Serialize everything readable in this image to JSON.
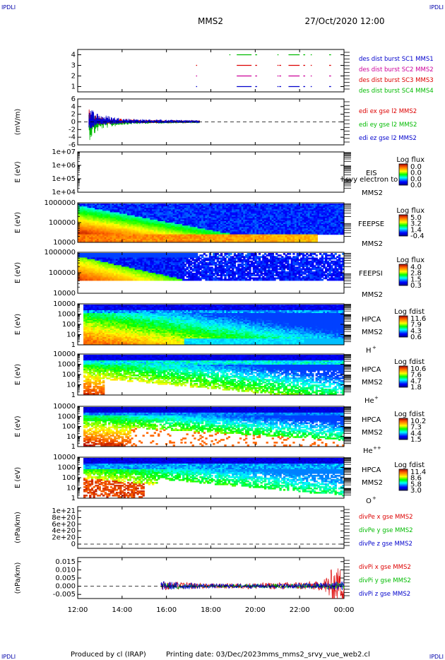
{
  "header": {
    "corner_left_top": "IPDLI",
    "corner_right_top": "IPDLI",
    "title": "MMS2",
    "datetime": "27/Oct/2020 12:00",
    "corner_left_bottom": "IPDLI",
    "corner_right_bottom": "IPDLI"
  },
  "footer": {
    "produced_by": "Produced by cl (IRAP)",
    "printing_date": "Printing date: 03/Dec/2023",
    "script": "mms_mms2_srvy_vue_web2.cl"
  },
  "colors": {
    "mms1": "#0000cc",
    "mms2": "#cc0099",
    "mms3": "#dd0000",
    "mms4": "#00bb00",
    "x": "#dd0000",
    "y": "#00bb00",
    "z": "#0000cc"
  },
  "chart_data": [
    {
      "type": "line",
      "panel": "burst-availability",
      "ylim": [
        0.5,
        4.5
      ],
      "yticks": [
        "1",
        "2",
        "3",
        "4"
      ],
      "series": [
        {
          "name": "des dist burst SC1 MMS1",
          "level": 1,
          "intervals": [
            [
              "17:20",
              "17:22"
            ],
            [
              "19:10",
              "19:50"
            ],
            [
              "20:00",
              "20:05"
            ],
            [
              "21:00",
              "21:03"
            ],
            [
              "21:05",
              "21:10"
            ],
            [
              "21:30",
              "22:00"
            ],
            [
              "22:10",
              "22:15"
            ],
            [
              "22:30",
              "22:33"
            ],
            [
              "23:20",
              "23:25"
            ]
          ]
        },
        {
          "name": "des dist burst SC2 MMS2",
          "level": 2,
          "intervals": [
            [
              "17:20",
              "17:22"
            ],
            [
              "19:10",
              "19:50"
            ],
            [
              "20:00",
              "20:05"
            ],
            [
              "21:00",
              "21:03"
            ],
            [
              "21:05",
              "21:10"
            ],
            [
              "21:30",
              "22:00"
            ],
            [
              "22:10",
              "22:15"
            ],
            [
              "22:30",
              "22:33"
            ],
            [
              "23:20",
              "23:25"
            ]
          ]
        },
        {
          "name": "des dist burst SC3 MMS3",
          "level": 3,
          "intervals": [
            [
              "17:20",
              "17:22"
            ],
            [
              "19:10",
              "19:50"
            ],
            [
              "20:00",
              "20:05"
            ],
            [
              "21:00",
              "21:03"
            ],
            [
              "21:05",
              "21:10"
            ],
            [
              "21:30",
              "22:00"
            ],
            [
              "22:10",
              "22:15"
            ],
            [
              "22:30",
              "22:33"
            ],
            [
              "23:20",
              "23:25"
            ]
          ]
        },
        {
          "name": "des dist burst SC4 MMS4",
          "level": 4,
          "intervals": [
            [
              "18:50",
              "18:52"
            ],
            [
              "19:10",
              "19:50"
            ],
            [
              "20:00",
              "20:05"
            ],
            [
              "21:00",
              "21:03"
            ],
            [
              "21:30",
              "22:00"
            ],
            [
              "22:10",
              "22:15"
            ],
            [
              "22:30",
              "22:33"
            ],
            [
              "23:20",
              "23:25"
            ]
          ]
        }
      ]
    },
    {
      "type": "line",
      "panel": "electric-field",
      "ylabel": "(mV/m)",
      "ylim": [
        -6,
        6
      ],
      "yticks": [
        "6",
        "4",
        "2",
        "0",
        "-2",
        "-4",
        "-6"
      ],
      "series": [
        {
          "name": "edi ex gse l2 MMS2",
          "envelope": [
            [
              "12:30",
              3.5
            ],
            [
              "13:00",
              1.5
            ],
            [
              "14:00",
              0.8
            ],
            [
              "15:00",
              0.6
            ],
            [
              "16:00",
              0.5
            ],
            [
              "17:30",
              0.4
            ]
          ]
        },
        {
          "name": "edi ey gse l2 MMS2",
          "envelope": [
            [
              "12:30",
              -5.0
            ],
            [
              "13:00",
              -2.0
            ],
            [
              "14:00",
              -0.8
            ],
            [
              "15:00",
              -0.5
            ],
            [
              "16:00",
              -0.4
            ],
            [
              "17:30",
              -0.3
            ]
          ]
        },
        {
          "name": "edi ez gse l2 MMS2",
          "envelope": [
            [
              "12:30",
              4.0
            ],
            [
              "13:00",
              2.0
            ],
            [
              "14:00",
              1.0
            ],
            [
              "15:00",
              0.7
            ],
            [
              "16:00",
              0.6
            ],
            [
              "17:30",
              0.5
            ]
          ]
        }
      ]
    },
    {
      "type": "heatmap",
      "panel": "eis",
      "ylabel": "E (eV)",
      "yticks": [
        "1e+07",
        "1e+06",
        "1e+05",
        "1e+04"
      ],
      "instrument": "EIS",
      "spacecraft": "MMS2",
      "overlay_text": "l svy electron to",
      "colorbar": {
        "title": "Log flux",
        "ticks": [
          "0.0",
          "0.0",
          "0.0",
          "0.0"
        ]
      },
      "values": []
    },
    {
      "type": "heatmap",
      "panel": "feeps-electron",
      "ylabel": "E (eV)",
      "yticks": [
        "1000000",
        "100000",
        "10000"
      ],
      "instrument": "FEEPSE",
      "spacecraft": "MMS2",
      "colorbar": {
        "title": "Log flux",
        "ticks": [
          "5.0",
          "3.2",
          "1.4",
          "-0.4"
        ],
        "range": [
          -0.4,
          5.0
        ]
      }
    },
    {
      "type": "heatmap",
      "panel": "feeps-ion",
      "ylabel": "E (eV)",
      "yticks": [
        "1000000",
        "100000",
        "10000"
      ],
      "instrument": "FEEPSI",
      "spacecraft": "MMS2",
      "colorbar": {
        "title": "Log flux",
        "ticks": [
          "4.0",
          "2.8",
          "1.5",
          "0.3"
        ],
        "range": [
          0.3,
          4.0
        ]
      }
    },
    {
      "type": "heatmap",
      "panel": "hpca-hplus",
      "ylabel": "E (eV)",
      "yticks": [
        "10000",
        "1000",
        "100",
        "10",
        "1"
      ],
      "instrument": "HPCA",
      "spacecraft": "MMS2",
      "species": "H",
      "charge": "+",
      "colorbar": {
        "title": "Log fdist",
        "ticks": [
          "11.6",
          "7.9",
          "4.3",
          "0.6"
        ],
        "range": [
          0.6,
          11.6
        ]
      }
    },
    {
      "type": "heatmap",
      "panel": "hpca-heplus",
      "ylabel": "E (eV)",
      "yticks": [
        "10000",
        "1000",
        "100",
        "10",
        "1"
      ],
      "instrument": "HPCA",
      "spacecraft": "MMS2",
      "species": "He",
      "charge": "+",
      "colorbar": {
        "title": "Log fdist",
        "ticks": [
          "10.6",
          "7.6",
          "4.7",
          "1.8"
        ],
        "range": [
          1.8,
          10.6
        ]
      }
    },
    {
      "type": "heatmap",
      "panel": "hpca-heplusplus",
      "ylabel": "E (eV)",
      "yticks": [
        "10000",
        "1000",
        "100",
        "10",
        "1"
      ],
      "instrument": "HPCA",
      "spacecraft": "MMS2",
      "species": "He",
      "charge": "++",
      "colorbar": {
        "title": "Log fdist",
        "ticks": [
          "10.2",
          "7.3",
          "4.4",
          "1.5"
        ],
        "range": [
          1.5,
          10.2
        ]
      }
    },
    {
      "type": "heatmap",
      "panel": "hpca-oplus",
      "ylabel": "E (eV)",
      "yticks": [
        "10000",
        "1000",
        "100",
        "10",
        "1"
      ],
      "instrument": "HPCA",
      "spacecraft": "MMS2",
      "species": "O",
      "charge": "+",
      "colorbar": {
        "title": "Log fdist",
        "ticks": [
          "11.4",
          "8.6",
          "5.8",
          "3.0"
        ],
        "range": [
          3.0,
          11.4
        ]
      }
    },
    {
      "type": "line",
      "panel": "divpe",
      "ylabel": "(nPa/km)",
      "ylim": [
        0,
        1e+21
      ],
      "yticks": [
        "1e+21",
        "8e+20",
        "6e+20",
        "4e+20",
        "2e+20",
        "0"
      ],
      "series": [
        {
          "name": "divPe x gse MMS2"
        },
        {
          "name": "divPe y gse MMS2"
        },
        {
          "name": "divPe z gse MMS2"
        }
      ]
    },
    {
      "type": "line",
      "panel": "divpi",
      "ylabel": "(nPa/km)",
      "ylim": [
        -0.0075,
        0.0175
      ],
      "yticks": [
        "0.015",
        "0.010",
        "0.005",
        "0.000",
        "-0.005"
      ],
      "series": [
        {
          "name": "divPi x gse MMS2",
          "envelope": [
            [
              "15:45",
              0.004
            ],
            [
              "18:00",
              0.002
            ],
            [
              "21:00",
              0.003
            ],
            [
              "23:00",
              0.004
            ],
            [
              "23:30",
              0.015
            ]
          ]
        },
        {
          "name": "divPi y gse MMS2",
          "envelope": [
            [
              "15:45",
              0.003
            ],
            [
              "18:00",
              0.001
            ],
            [
              "21:00",
              0.002
            ],
            [
              "23:00",
              0.002
            ],
            [
              "23:30",
              0.003
            ]
          ]
        },
        {
          "name": "divPi z gse MMS2",
          "envelope": [
            [
              "15:45",
              0.004
            ],
            [
              "18:00",
              0.002
            ],
            [
              "21:00",
              0.002
            ],
            [
              "23:00",
              0.003
            ],
            [
              "23:30",
              0.004
            ]
          ]
        }
      ]
    }
  ],
  "time_axis": {
    "ticks": [
      "12:00",
      "14:00",
      "16:00",
      "18:00",
      "20:00",
      "22:00",
      "00:00"
    ],
    "range_hours": [
      12,
      24
    ]
  }
}
